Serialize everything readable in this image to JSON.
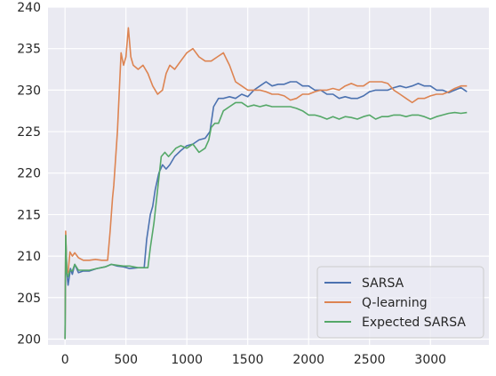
{
  "chart_data": {
    "type": "line",
    "title": "",
    "xlabel": "",
    "ylabel": "",
    "xlim": [
      -140,
      3480
    ],
    "ylim": [
      199.3,
      240
    ],
    "xticks": [
      0,
      500,
      1000,
      1500,
      2000,
      2500,
      3000
    ],
    "yticks": [
      200,
      205,
      210,
      215,
      220,
      225,
      230,
      235,
      240
    ],
    "grid": true,
    "legend_position": "lower-right",
    "series": [
      {
        "name": "SARSA",
        "color": "#4c72b0",
        "points": [
          [
            0,
            200
          ],
          [
            5,
            212.5
          ],
          [
            15,
            208
          ],
          [
            25,
            206.5
          ],
          [
            45,
            208.5
          ],
          [
            60,
            207.8
          ],
          [
            80,
            209
          ],
          [
            110,
            208
          ],
          [
            150,
            208.2
          ],
          [
            200,
            208.2
          ],
          [
            260,
            208.5
          ],
          [
            330,
            208.7
          ],
          [
            380,
            209
          ],
          [
            430,
            208.8
          ],
          [
            480,
            208.7
          ],
          [
            530,
            208.5
          ],
          [
            600,
            208.6
          ],
          [
            650,
            208.6
          ],
          [
            670,
            212
          ],
          [
            700,
            215
          ],
          [
            720,
            216
          ],
          [
            740,
            218
          ],
          [
            770,
            220
          ],
          [
            800,
            221
          ],
          [
            830,
            220.5
          ],
          [
            860,
            221
          ],
          [
            900,
            222
          ],
          [
            950,
            222.7
          ],
          [
            1000,
            223.3
          ],
          [
            1050,
            223.5
          ],
          [
            1100,
            224
          ],
          [
            1150,
            224.2
          ],
          [
            1190,
            225
          ],
          [
            1220,
            228
          ],
          [
            1260,
            229
          ],
          [
            1300,
            229
          ],
          [
            1350,
            229.2
          ],
          [
            1400,
            229
          ],
          [
            1450,
            229.5
          ],
          [
            1500,
            229.2
          ],
          [
            1550,
            230
          ],
          [
            1600,
            230.5
          ],
          [
            1650,
            231
          ],
          [
            1700,
            230.5
          ],
          [
            1750,
            230.7
          ],
          [
            1800,
            230.7
          ],
          [
            1850,
            231
          ],
          [
            1900,
            231
          ],
          [
            1950,
            230.5
          ],
          [
            2000,
            230.5
          ],
          [
            2050,
            230
          ],
          [
            2100,
            230
          ],
          [
            2150,
            229.5
          ],
          [
            2200,
            229.5
          ],
          [
            2250,
            229
          ],
          [
            2300,
            229.2
          ],
          [
            2350,
            229
          ],
          [
            2400,
            229
          ],
          [
            2450,
            229.3
          ],
          [
            2500,
            229.8
          ],
          [
            2550,
            230
          ],
          [
            2600,
            230
          ],
          [
            2650,
            230
          ],
          [
            2700,
            230.3
          ],
          [
            2750,
            230.5
          ],
          [
            2800,
            230.3
          ],
          [
            2850,
            230.5
          ],
          [
            2900,
            230.8
          ],
          [
            2950,
            230.5
          ],
          [
            3000,
            230.5
          ],
          [
            3050,
            230
          ],
          [
            3100,
            230
          ],
          [
            3150,
            229.7
          ],
          [
            3200,
            230
          ],
          [
            3250,
            230.3
          ],
          [
            3300,
            229.8
          ]
        ]
      },
      {
        "name": "Q-learning",
        "color": "#dd8452",
        "points": [
          [
            0,
            200
          ],
          [
            5,
            213
          ],
          [
            15,
            208
          ],
          [
            25,
            208
          ],
          [
            40,
            210.5
          ],
          [
            60,
            210
          ],
          [
            80,
            210.4
          ],
          [
            110,
            209.8
          ],
          [
            150,
            209.5
          ],
          [
            200,
            209.5
          ],
          [
            250,
            209.6
          ],
          [
            300,
            209.5
          ],
          [
            350,
            209.5
          ],
          [
            370,
            213
          ],
          [
            390,
            217
          ],
          [
            400,
            218.5
          ],
          [
            430,
            225
          ],
          [
            460,
            234.5
          ],
          [
            480,
            233
          ],
          [
            500,
            234
          ],
          [
            520,
            237.5
          ],
          [
            540,
            234
          ],
          [
            560,
            233
          ],
          [
            600,
            232.5
          ],
          [
            640,
            233
          ],
          [
            680,
            232
          ],
          [
            720,
            230.5
          ],
          [
            760,
            229.5
          ],
          [
            800,
            230
          ],
          [
            830,
            232
          ],
          [
            860,
            233
          ],
          [
            900,
            232.5
          ],
          [
            950,
            233.5
          ],
          [
            1000,
            234.5
          ],
          [
            1050,
            235
          ],
          [
            1100,
            234
          ],
          [
            1150,
            233.5
          ],
          [
            1200,
            233.5
          ],
          [
            1250,
            234
          ],
          [
            1300,
            234.5
          ],
          [
            1350,
            233
          ],
          [
            1400,
            231
          ],
          [
            1450,
            230.5
          ],
          [
            1500,
            230
          ],
          [
            1550,
            230
          ],
          [
            1600,
            230
          ],
          [
            1650,
            229.8
          ],
          [
            1700,
            229.5
          ],
          [
            1750,
            229.5
          ],
          [
            1800,
            229.3
          ],
          [
            1850,
            228.8
          ],
          [
            1900,
            229
          ],
          [
            1950,
            229.5
          ],
          [
            2000,
            229.5
          ],
          [
            2050,
            229.8
          ],
          [
            2100,
            230
          ],
          [
            2150,
            230
          ],
          [
            2200,
            230.2
          ],
          [
            2250,
            230
          ],
          [
            2300,
            230.5
          ],
          [
            2350,
            230.8
          ],
          [
            2400,
            230.5
          ],
          [
            2450,
            230.5
          ],
          [
            2500,
            231
          ],
          [
            2550,
            231
          ],
          [
            2600,
            231
          ],
          [
            2650,
            230.8
          ],
          [
            2700,
            230
          ],
          [
            2750,
            229.5
          ],
          [
            2800,
            229
          ],
          [
            2850,
            228.5
          ],
          [
            2900,
            229
          ],
          [
            2950,
            229
          ],
          [
            3000,
            229.3
          ],
          [
            3050,
            229.5
          ],
          [
            3100,
            229.5
          ],
          [
            3150,
            229.8
          ],
          [
            3200,
            230.2
          ],
          [
            3250,
            230.5
          ],
          [
            3300,
            230.5
          ]
        ]
      },
      {
        "name": "Expected SARSA",
        "color": "#55a868",
        "points": [
          [
            0,
            200
          ],
          [
            5,
            212.5
          ],
          [
            15,
            208
          ],
          [
            25,
            207.5
          ],
          [
            40,
            208.3
          ],
          [
            60,
            208.2
          ],
          [
            80,
            209
          ],
          [
            110,
            208.3
          ],
          [
            150,
            208.3
          ],
          [
            200,
            208.3
          ],
          [
            260,
            208.5
          ],
          [
            330,
            208.7
          ],
          [
            380,
            209
          ],
          [
            430,
            208.9
          ],
          [
            480,
            208.8
          ],
          [
            530,
            208.8
          ],
          [
            600,
            208.6
          ],
          [
            680,
            208.6
          ],
          [
            700,
            211
          ],
          [
            730,
            214
          ],
          [
            760,
            218
          ],
          [
            790,
            222
          ],
          [
            820,
            222.5
          ],
          [
            850,
            222
          ],
          [
            880,
            222.5
          ],
          [
            910,
            223
          ],
          [
            950,
            223.3
          ],
          [
            1000,
            223
          ],
          [
            1050,
            223.5
          ],
          [
            1100,
            222.5
          ],
          [
            1150,
            223
          ],
          [
            1180,
            224
          ],
          [
            1200,
            225.5
          ],
          [
            1230,
            226
          ],
          [
            1260,
            226
          ],
          [
            1300,
            227.5
          ],
          [
            1350,
            228
          ],
          [
            1400,
            228.5
          ],
          [
            1450,
            228.5
          ],
          [
            1500,
            228
          ],
          [
            1550,
            228.2
          ],
          [
            1600,
            228
          ],
          [
            1650,
            228.2
          ],
          [
            1700,
            228
          ],
          [
            1750,
            228
          ],
          [
            1800,
            228
          ],
          [
            1850,
            228
          ],
          [
            1900,
            227.8
          ],
          [
            1950,
            227.5
          ],
          [
            2000,
            227
          ],
          [
            2050,
            227
          ],
          [
            2100,
            226.8
          ],
          [
            2150,
            226.5
          ],
          [
            2200,
            226.8
          ],
          [
            2250,
            226.5
          ],
          [
            2300,
            226.8
          ],
          [
            2350,
            226.7
          ],
          [
            2400,
            226.5
          ],
          [
            2450,
            226.8
          ],
          [
            2500,
            227
          ],
          [
            2550,
            226.5
          ],
          [
            2600,
            226.8
          ],
          [
            2650,
            226.8
          ],
          [
            2700,
            227
          ],
          [
            2750,
            227
          ],
          [
            2800,
            226.8
          ],
          [
            2850,
            227
          ],
          [
            2900,
            227
          ],
          [
            2950,
            226.8
          ],
          [
            3000,
            226.5
          ],
          [
            3050,
            226.8
          ],
          [
            3100,
            227
          ],
          [
            3150,
            227.2
          ],
          [
            3200,
            227.3
          ],
          [
            3250,
            227.2
          ],
          [
            3300,
            227.3
          ]
        ]
      }
    ]
  }
}
